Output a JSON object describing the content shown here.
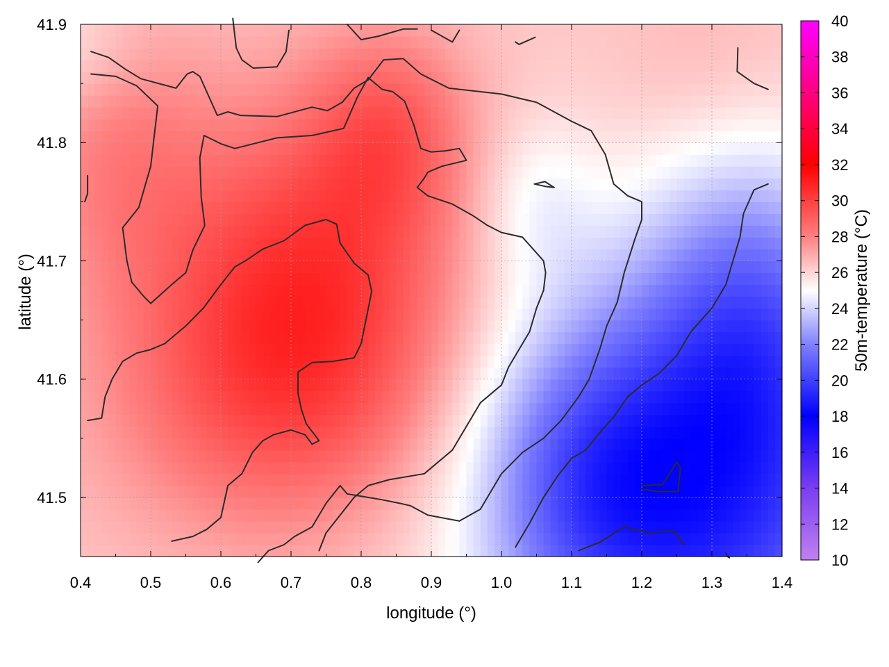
{
  "chart_data": {
    "type": "heatmap",
    "xlabel": "longitude (°)",
    "ylabel": "latitude (°)",
    "colorbar_label": "50m-temperature (°C)",
    "xlim": [
      0.4,
      1.4
    ],
    "ylim": [
      41.45,
      41.9
    ],
    "x_ticks": [
      {
        "value": 0.4,
        "label": "0.4"
      },
      {
        "value": 0.5,
        "label": "0.5"
      },
      {
        "value": 0.6,
        "label": "0.6"
      },
      {
        "value": 0.7,
        "label": "0.7"
      },
      {
        "value": 0.8,
        "label": "0.8"
      },
      {
        "value": 0.9,
        "label": "0.9"
      },
      {
        "value": 1.0,
        "label": "1.0"
      },
      {
        "value": 1.1,
        "label": "1.1"
      },
      {
        "value": 1.2,
        "label": "1.2"
      },
      {
        "value": 1.3,
        "label": "1.3"
      },
      {
        "value": 1.4,
        "label": "1.4"
      }
    ],
    "y_ticks": [
      {
        "value": 41.5,
        "label": "41.5"
      },
      {
        "value": 41.6,
        "label": "41.6"
      },
      {
        "value": 41.7,
        "label": "41.7"
      },
      {
        "value": 41.8,
        "label": "41.8"
      },
      {
        "value": 41.9,
        "label": "41.9"
      }
    ],
    "colorbar": {
      "range": [
        10,
        40
      ],
      "ticks": [
        {
          "value": 10,
          "label": "10"
        },
        {
          "value": 12,
          "label": "12"
        },
        {
          "value": 14,
          "label": "14"
        },
        {
          "value": 16,
          "label": "16"
        },
        {
          "value": 18,
          "label": "18"
        },
        {
          "value": 20,
          "label": "20"
        },
        {
          "value": 22,
          "label": "22"
        },
        {
          "value": 24,
          "label": "24"
        },
        {
          "value": 26,
          "label": "26"
        },
        {
          "value": 28,
          "label": "28"
        },
        {
          "value": 30,
          "label": "30"
        },
        {
          "value": 32,
          "label": "32"
        },
        {
          "value": 34,
          "label": "34"
        },
        {
          "value": 36,
          "label": "36"
        },
        {
          "value": 38,
          "label": "38"
        },
        {
          "value": 40,
          "label": "40"
        }
      ],
      "stops": [
        {
          "value": 10,
          "color": "#c080f0"
        },
        {
          "value": 14,
          "color": "#7a3ef0"
        },
        {
          "value": 18,
          "color": "#0000ff"
        },
        {
          "value": 22,
          "color": "#8080ff"
        },
        {
          "value": 25,
          "color": "#ffffff"
        },
        {
          "value": 28,
          "color": "#ff8080"
        },
        {
          "value": 32,
          "color": "#ff0000"
        },
        {
          "value": 36,
          "color": "#ff0080"
        },
        {
          "value": 40,
          "color": "#ff00ff"
        }
      ]
    },
    "grid": true,
    "temperature_field": {
      "base": 26.3,
      "features": [
        {
          "lon": 0.72,
          "lat": 41.67,
          "amp": 4.2,
          "sx": 0.16,
          "sy": 0.11
        },
        {
          "lon": 0.84,
          "lat": 41.81,
          "amp": 2.2,
          "sx": 0.08,
          "sy": 0.06
        },
        {
          "lon": 0.45,
          "lat": 41.8,
          "amp": 1.5,
          "sx": 0.09,
          "sy": 0.09
        },
        {
          "lon": 0.65,
          "lat": 41.57,
          "amp": 1.2,
          "sx": 0.18,
          "sy": 0.08
        },
        {
          "lon": 1.28,
          "lat": 41.5,
          "amp": -7.0,
          "sx": 0.2,
          "sy": 0.14
        },
        {
          "lon": 1.36,
          "lat": 41.66,
          "amp": -3.0,
          "sx": 0.1,
          "sy": 0.1
        },
        {
          "lon": 1.12,
          "lat": 41.52,
          "amp": -2.2,
          "sx": 0.1,
          "sy": 0.08
        },
        {
          "lon": 1.05,
          "lat": 41.75,
          "amp": -1.2,
          "sx": 0.06,
          "sy": 0.05
        },
        {
          "lon": 0.38,
          "lat": 41.88,
          "amp": -1.2,
          "sx": 0.08,
          "sy": 0.04
        },
        {
          "lon": 1.3,
          "lat": 41.86,
          "amp": 0.6,
          "sx": 0.1,
          "sy": 0.06
        }
      ]
    },
    "contours": [
      [
        [
          0.415,
          41.877
        ],
        [
          0.44,
          41.872
        ],
        [
          0.464,
          41.862
        ],
        [
          0.486,
          41.854
        ],
        [
          0.536,
          41.846
        ],
        [
          0.552,
          41.858
        ],
        [
          0.56,
          41.86
        ],
        [
          0.57,
          41.856
        ],
        [
          0.595,
          41.823
        ],
        [
          0.61,
          41.826
        ],
        [
          0.628,
          41.823
        ],
        [
          0.68,
          41.822
        ],
        [
          0.73,
          41.83
        ],
        [
          0.752,
          41.827
        ],
        [
          0.773,
          41.834
        ],
        [
          0.79,
          41.846
        ],
        [
          0.81,
          41.853
        ],
        [
          0.832,
          41.87
        ],
        [
          0.86,
          41.871
        ],
        [
          0.885,
          41.858
        ],
        [
          0.925,
          41.846
        ],
        [
          1.0,
          41.841
        ],
        [
          1.05,
          41.834
        ],
        [
          1.1,
          41.818
        ],
        [
          1.128,
          41.81
        ],
        [
          1.148,
          41.79
        ],
        [
          1.16,
          41.765
        ],
        [
          1.18,
          41.755
        ],
        [
          1.2,
          41.75
        ],
        [
          1.2,
          41.735
        ],
        [
          1.19,
          41.718
        ],
        [
          1.175,
          41.69
        ],
        [
          1.165,
          41.665
        ],
        [
          1.15,
          41.645
        ],
        [
          1.14,
          41.625
        ],
        [
          1.125,
          41.6
        ],
        [
          1.11,
          41.585
        ],
        [
          1.085,
          41.565
        ],
        [
          1.06,
          41.55
        ],
        [
          1.03,
          41.538
        ],
        [
          1.0,
          41.52
        ],
        [
          0.97,
          41.49
        ],
        [
          0.94,
          41.48
        ],
        [
          0.895,
          41.485
        ],
        [
          0.87,
          41.493
        ],
        [
          0.855,
          41.495
        ],
        [
          0.83,
          41.498
        ],
        [
          0.78,
          41.503
        ],
        [
          0.77,
          41.51
        ],
        [
          0.75,
          41.495
        ],
        [
          0.73,
          41.475
        ],
        [
          0.705,
          41.467
        ],
        [
          0.69,
          41.46
        ],
        [
          0.668,
          41.455
        ],
        [
          0.653,
          41.445
        ]
      ],
      [
        [
          0.415,
          41.858
        ],
        [
          0.45,
          41.856
        ],
        [
          0.48,
          41.848
        ],
        [
          0.51,
          41.831
        ],
        [
          0.5,
          41.78
        ],
        [
          0.483,
          41.745
        ],
        [
          0.46,
          41.728
        ],
        [
          0.466,
          41.7
        ],
        [
          0.473,
          41.682
        ],
        [
          0.49,
          41.67
        ],
        [
          0.5,
          41.664
        ],
        [
          0.53,
          41.68
        ],
        [
          0.55,
          41.69
        ],
        [
          0.56,
          41.709
        ],
        [
          0.577,
          41.73
        ],
        [
          0.572,
          41.754
        ],
        [
          0.57,
          41.787
        ],
        [
          0.576,
          41.806
        ],
        [
          0.6,
          41.799
        ],
        [
          0.62,
          41.795
        ],
        [
          0.68,
          41.804
        ],
        [
          0.73,
          41.806
        ],
        [
          0.775,
          41.812
        ],
        [
          0.795,
          41.839
        ],
        [
          0.81,
          41.855
        ],
        [
          0.83,
          41.845
        ],
        [
          0.845,
          41.843
        ],
        [
          0.862,
          41.835
        ],
        [
          0.875,
          41.815
        ],
        [
          0.885,
          41.795
        ],
        [
          0.9,
          41.792
        ],
        [
          0.92,
          41.793
        ],
        [
          0.94,
          41.795
        ],
        [
          0.95,
          41.785
        ],
        [
          0.915,
          41.78
        ],
        [
          0.895,
          41.775
        ],
        [
          0.89,
          41.77
        ],
        [
          0.88,
          41.762
        ],
        [
          0.895,
          41.755
        ],
        [
          0.93,
          41.748
        ],
        [
          0.96,
          41.738
        ],
        [
          0.98,
          41.73
        ],
        [
          1.0,
          41.724
        ],
        [
          1.03,
          41.72
        ],
        [
          1.06,
          41.7
        ],
        [
          1.063,
          41.69
        ],
        [
          1.06,
          41.675
        ],
        [
          1.05,
          41.66
        ],
        [
          1.04,
          41.64
        ],
        [
          1.02,
          41.62
        ],
        [
          1.01,
          41.61
        ],
        [
          1.0,
          41.595
        ],
        [
          0.97,
          41.58
        ],
        [
          0.95,
          41.56
        ],
        [
          0.93,
          41.54
        ],
        [
          0.91,
          41.53
        ],
        [
          0.89,
          41.52
        ],
        [
          0.84,
          41.515
        ],
        [
          0.81,
          41.51
        ],
        [
          0.8,
          41.505
        ],
        [
          0.79,
          41.5
        ],
        [
          0.75,
          41.47
        ],
        [
          0.74,
          41.455
        ]
      ],
      [
        [
          0.41,
          41.565
        ],
        [
          0.43,
          41.567
        ],
        [
          0.435,
          41.585
        ],
        [
          0.445,
          41.6
        ],
        [
          0.46,
          41.615
        ],
        [
          0.48,
          41.622
        ],
        [
          0.5,
          41.625
        ],
        [
          0.52,
          41.63
        ],
        [
          0.55,
          41.645
        ],
        [
          0.575,
          41.66
        ],
        [
          0.6,
          41.68
        ],
        [
          0.62,
          41.695
        ],
        [
          0.635,
          41.7
        ],
        [
          0.66,
          41.71
        ],
        [
          0.69,
          41.717
        ],
        [
          0.72,
          41.73
        ],
        [
          0.75,
          41.735
        ],
        [
          0.765,
          41.731
        ],
        [
          0.77,
          41.715
        ],
        [
          0.79,
          41.698
        ],
        [
          0.81,
          41.688
        ],
        [
          0.815,
          41.674
        ],
        [
          0.8,
          41.63
        ],
        [
          0.79,
          41.618
        ],
        [
          0.76,
          41.615
        ],
        [
          0.73,
          41.614
        ],
        [
          0.71,
          41.606
        ],
        [
          0.71,
          41.588
        ],
        [
          0.715,
          41.574
        ],
        [
          0.722,
          41.562
        ],
        [
          0.74,
          41.548
        ],
        [
          0.73,
          41.545
        ],
        [
          0.72,
          41.553
        ],
        [
          0.7,
          41.557
        ],
        [
          0.675,
          41.553
        ],
        [
          0.66,
          41.548
        ],
        [
          0.645,
          41.538
        ],
        [
          0.63,
          41.52
        ],
        [
          0.61,
          41.51
        ],
        [
          0.6,
          41.483
        ],
        [
          0.58,
          41.473
        ],
        [
          0.56,
          41.467
        ],
        [
          0.53,
          41.463
        ]
      ],
      [
        [
          0.406,
          41.75
        ],
        [
          0.41,
          41.757
        ],
        [
          0.41,
          41.772
        ]
      ],
      [
        [
          1.02,
          41.458
        ],
        [
          1.04,
          41.478
        ],
        [
          1.06,
          41.5
        ],
        [
          1.08,
          41.518
        ],
        [
          1.1,
          41.533
        ],
        [
          1.12,
          41.54
        ],
        [
          1.142,
          41.556
        ],
        [
          1.16,
          41.568
        ],
        [
          1.18,
          41.585
        ],
        [
          1.2,
          41.595
        ],
        [
          1.225,
          41.605
        ],
        [
          1.25,
          41.62
        ],
        [
          1.27,
          41.64
        ],
        [
          1.3,
          41.66
        ],
        [
          1.32,
          41.68
        ],
        [
          1.33,
          41.7
        ],
        [
          1.34,
          41.72
        ],
        [
          1.345,
          41.74
        ],
        [
          1.36,
          41.76
        ],
        [
          1.38,
          41.765
        ]
      ],
      [
        [
          1.2,
          41.51
        ],
        [
          1.23,
          41.511
        ],
        [
          1.25,
          41.53
        ],
        [
          1.255,
          41.525
        ],
        [
          1.252,
          41.505
        ],
        [
          1.22,
          41.505
        ],
        [
          1.2,
          41.507
        ]
      ],
      [
        [
          1.11,
          41.455
        ],
        [
          1.14,
          41.462
        ],
        [
          1.175,
          41.475
        ],
        [
          1.21,
          41.47
        ],
        [
          1.245,
          41.472
        ],
        [
          1.26,
          41.46
        ]
      ],
      [
        [
          1.047,
          41.765
        ],
        [
          1.062,
          41.767
        ],
        [
          1.075,
          41.762
        ],
        [
          1.062,
          41.763
        ],
        [
          1.047,
          41.765
        ]
      ],
      [
        [
          0.617,
          41.905
        ],
        [
          0.622,
          41.88
        ],
        [
          0.63,
          41.87
        ],
        [
          0.646,
          41.863
        ],
        [
          0.68,
          41.864
        ],
        [
          0.693,
          41.877
        ],
        [
          0.697,
          41.895
        ]
      ],
      [
        [
          0.78,
          41.9
        ],
        [
          0.8,
          41.887
        ],
        [
          0.825,
          41.89
        ],
        [
          0.86,
          41.896
        ],
        [
          0.88,
          41.896
        ]
      ],
      [
        [
          0.9,
          41.895
        ],
        [
          0.93,
          41.885
        ],
        [
          0.94,
          41.895
        ]
      ],
      [
        [
          1.02,
          41.885
        ],
        [
          1.025,
          41.883
        ],
        [
          1.048,
          41.889
        ]
      ],
      [
        [
          1.337,
          41.88
        ],
        [
          1.336,
          41.86
        ],
        [
          1.36,
          41.85
        ],
        [
          1.38,
          41.845
        ]
      ],
      [
        [
          1.32,
          41.453
        ],
        [
          1.322,
          41.45
        ],
        [
          1.325,
          41.449
        ]
      ]
    ]
  }
}
